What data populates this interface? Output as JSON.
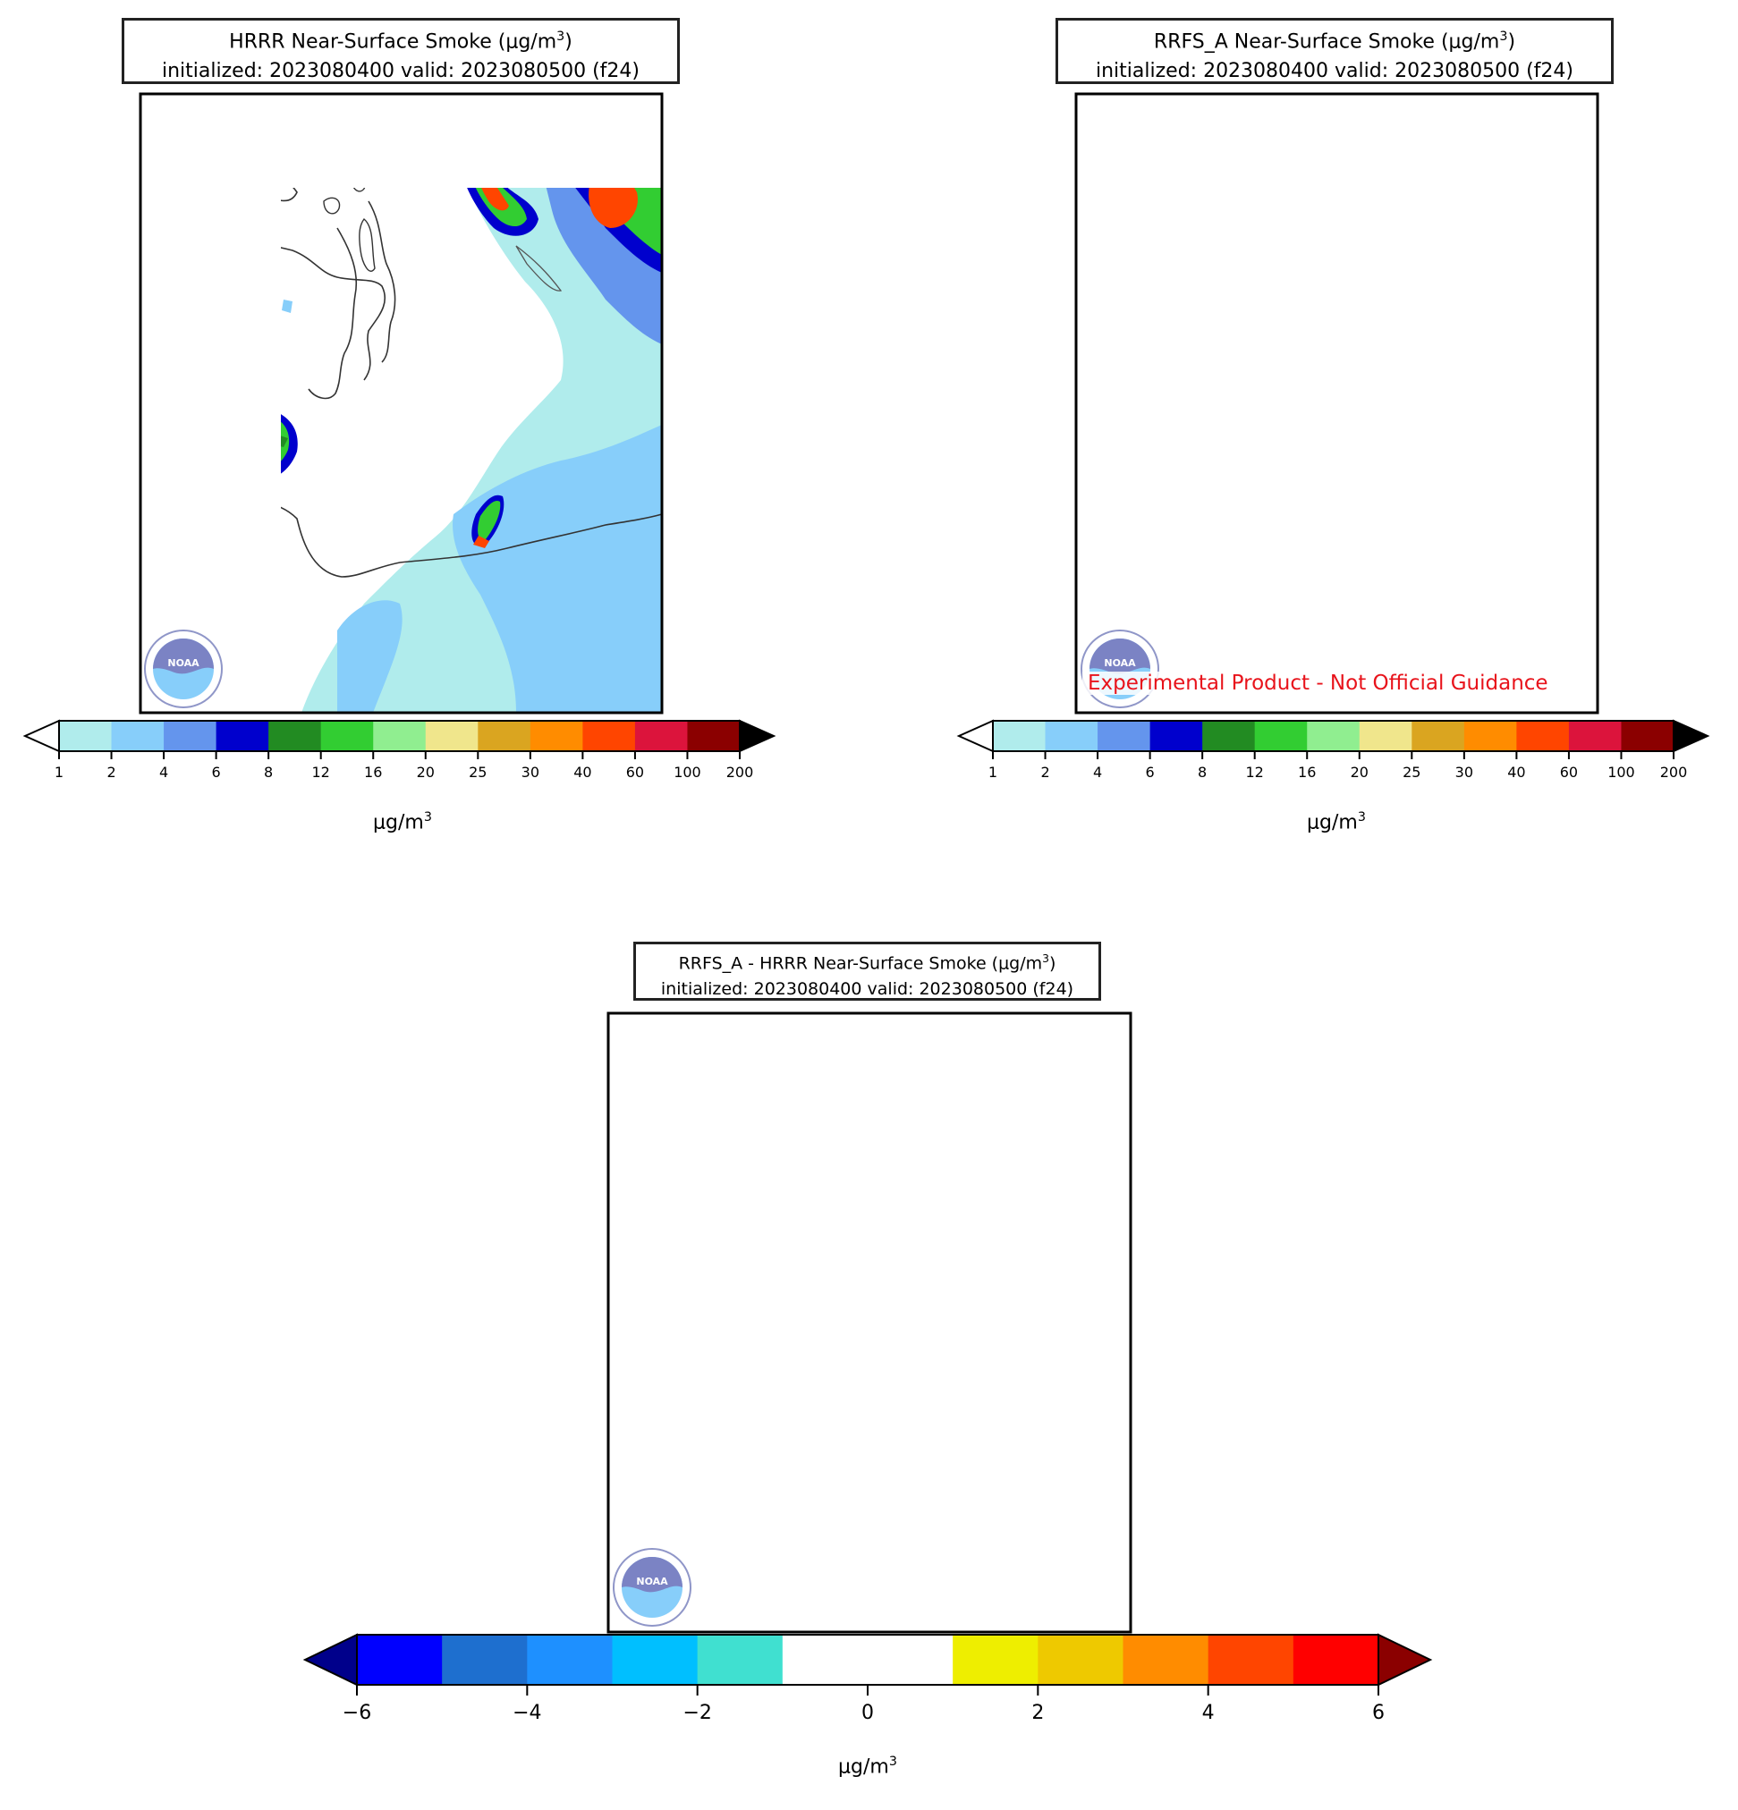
{
  "panels": [
    {
      "id": "hrrr",
      "title_line1_pre": "HRRR Near-Surface Smoke (μg/m",
      "title_line1_sup": "3",
      "title_line1_post": ")",
      "title_line2": "initialized: 2023080400 valid: 2023080500 (f24)",
      "watermark": ""
    },
    {
      "id": "rrfs",
      "title_line1_pre": "RRFS_A Near-Surface Smoke (μg/m",
      "title_line1_sup": "3",
      "title_line1_post": ")",
      "title_line2": "initialized: 2023080400 valid: 2023080500 (f24)",
      "watermark": "Experimental Product - Not Official Guidance"
    },
    {
      "id": "diff",
      "title_line1_pre": "RRFS_A - HRRR Near-Surface Smoke (μg/m",
      "title_line1_sup": "3",
      "title_line1_post": ")",
      "title_line2": "initialized: 2023080400 valid: 2023080500 (f24)",
      "watermark": ""
    }
  ],
  "logo": {
    "name": "noaa-logo",
    "text": "NOAA"
  },
  "colorbars": {
    "smoke": {
      "units_pre": "μg/m",
      "units_sup": "3",
      "ticks": [
        "1",
        "2",
        "4",
        "6",
        "8",
        "12",
        "16",
        "20",
        "25",
        "30",
        "40",
        "60",
        "100",
        "200"
      ],
      "colors": [
        "#b0ecec",
        "#87cefa",
        "#6495ed",
        "#0000cd",
        "#228b22",
        "#32cd32",
        "#90ee90",
        "#f0e68c",
        "#daa520",
        "#ff8c00",
        "#ff4500",
        "#dc143c",
        "#8b0000"
      ],
      "under_color": "#ffffff",
      "over_color": "#000000"
    },
    "diff": {
      "units_pre": "μg/m",
      "units_sup": "3",
      "ticks": [
        "−6",
        "−4",
        "−2",
        "0",
        "2",
        "4",
        "6"
      ],
      "colors": [
        "#0000ff",
        "#1e6fcf",
        "#1e90ff",
        "#00bfff",
        "#40e0d0",
        "#ffffff",
        "#ffffff",
        "#eeee00",
        "#eec900",
        "#ff8c00",
        "#ff4500",
        "#ff0000"
      ],
      "under_color": "#00008b",
      "over_color": "#8b0000"
    }
  }
}
